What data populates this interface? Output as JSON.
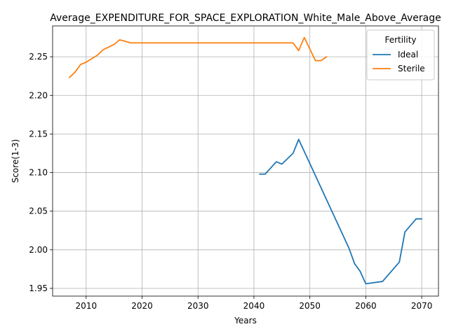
{
  "chart_data": {
    "type": "line",
    "title": "Average_EXPENDITURE_FOR_SPACE_EXPLORATION_White_Male_Above_Average",
    "xlabel": "Years",
    "ylabel": "Score(1-3)",
    "xlim": [
      2004,
      2073
    ],
    "ylim": [
      1.94,
      2.29
    ],
    "xticks": [
      2010,
      2020,
      2030,
      2040,
      2050,
      2060,
      2070
    ],
    "yticks": [
      1.95,
      2.0,
      2.05,
      2.1,
      2.15,
      2.2,
      2.25
    ],
    "ytick_labels": [
      "1.95",
      "2.00",
      "2.05",
      "2.10",
      "2.15",
      "2.20",
      "2.25"
    ],
    "grid": true,
    "legend": {
      "title": "Fertility",
      "position": "top-right"
    },
    "series": [
      {
        "name": "Ideal",
        "color": "#1f77b4",
        "x": [
          2041,
          2042,
          2044,
          2045,
          2047,
          2048,
          2057,
          2058,
          2059,
          2060,
          2063,
          2066,
          2067,
          2069,
          2070
        ],
        "y": [
          2.098,
          2.098,
          2.114,
          2.111,
          2.125,
          2.143,
          2.002,
          1.982,
          1.972,
          1.956,
          1.959,
          1.984,
          2.023,
          2.04,
          2.04
        ]
      },
      {
        "name": "Sterile",
        "color": "#ff7f0e",
        "x": [
          2007,
          2008,
          2009,
          2010,
          2012,
          2013,
          2015,
          2016,
          2018,
          2047,
          2048,
          2049,
          2051,
          2052,
          2053
        ],
        "y": [
          2.223,
          2.23,
          2.24,
          2.243,
          2.252,
          2.259,
          2.266,
          2.272,
          2.268,
          2.268,
          2.258,
          2.275,
          2.245,
          2.245,
          2.25
        ]
      }
    ]
  }
}
